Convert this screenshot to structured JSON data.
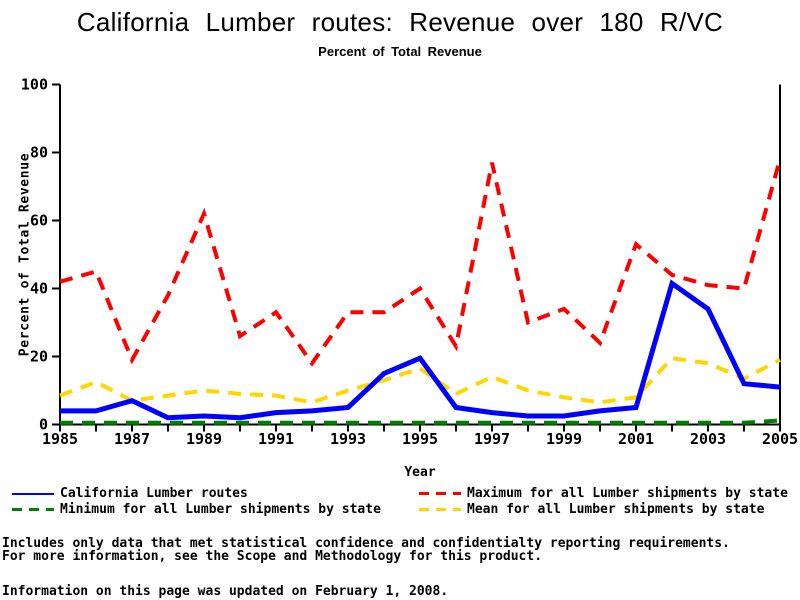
{
  "title": "California Lumber routes: Revenue over 180 R/VC",
  "subtitle": "Percent of Total Revenue",
  "footnotes": {
    "line1": "Includes only data that met statistical confidence and confidentialty reporting requirements.",
    "line2": "For more information, see the Scope and Methodology for this product.",
    "line3": "Information on this page was updated on February 1, 2008."
  },
  "chart_data": {
    "type": "line",
    "title": "California Lumber routes: Revenue over 180 R/VC",
    "subtitle": "Percent of Total Revenue",
    "xlabel": "Year",
    "ylabel": "Percent of Total Revenue",
    "xlim": [
      1985,
      2005
    ],
    "ylim": [
      0,
      100
    ],
    "yticks": [
      0,
      20,
      40,
      60,
      80,
      100
    ],
    "xticks_minor_every_year": true,
    "xtick_labels": [
      1985,
      1987,
      1989,
      1991,
      1993,
      1995,
      1997,
      1999,
      2001,
      2003,
      2005
    ],
    "grid": false,
    "legend_position": "bottom-two-columns",
    "x": [
      1985,
      1986,
      1987,
      1988,
      1989,
      1990,
      1991,
      1992,
      1993,
      1994,
      1995,
      1996,
      1997,
      1998,
      1999,
      2000,
      2001,
      2002,
      2003,
      2004,
      2005
    ],
    "series": [
      {
        "name": "California Lumber routes",
        "color": "#0000ff",
        "dash": "solid",
        "values": [
          4,
          4,
          7,
          2,
          2.5,
          2,
          3.5,
          4,
          5,
          15,
          19.5,
          5,
          3.5,
          2.5,
          2.5,
          4,
          5,
          41.5,
          34,
          12,
          11
        ]
      },
      {
        "name": "Maximum for all Lumber shipments by state",
        "color": "#ff0000",
        "dash": "dashed",
        "values": [
          42,
          45,
          19,
          38,
          62,
          26,
          33,
          18,
          33,
          33,
          40,
          23,
          77,
          30,
          34,
          24,
          53,
          44,
          41,
          40,
          78
        ]
      },
      {
        "name": "Minimum for all Lumber shipments by state",
        "color": "#008000",
        "dash": "dashed",
        "values": [
          0.5,
          0.5,
          0.5,
          0.5,
          0.5,
          0.5,
          0.5,
          0.5,
          0.5,
          0.5,
          0.5,
          0.5,
          0.5,
          0.5,
          0.5,
          0.5,
          0.5,
          0.5,
          0.5,
          0.5,
          1.2
        ]
      },
      {
        "name": "Mean for all Lumber shipments by state",
        "color": "#ffd700",
        "dash": "dashed",
        "values": [
          8.5,
          12.5,
          7,
          8.5,
          10,
          9,
          8.5,
          6.5,
          10,
          13,
          16.5,
          9,
          14,
          10,
          8,
          6.5,
          8,
          19.5,
          18,
          13.5,
          19
        ]
      }
    ]
  }
}
